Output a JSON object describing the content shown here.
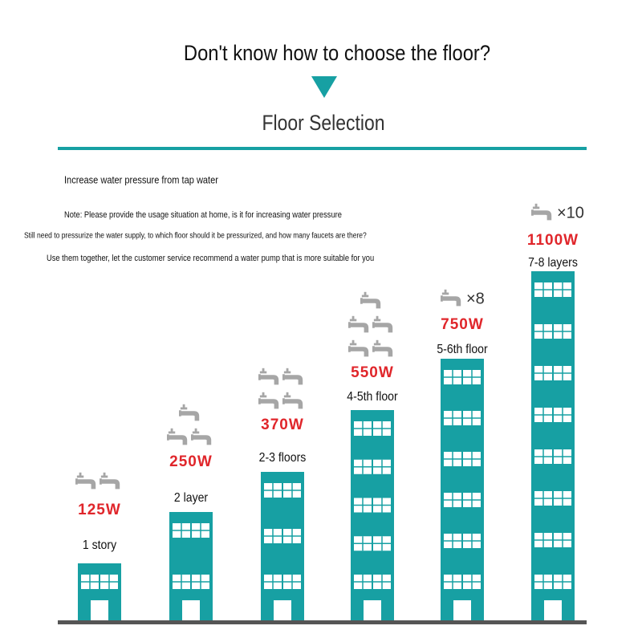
{
  "header": {
    "title": "Don't know how to choose the floor?",
    "subtitle": "Floor Selection"
  },
  "intro": [
    "Increase water pressure from tap water",
    "Note: Please provide the usage situation at home, is it for increasing water pressure",
    "Still need to pressurize the water supply, to which floor should it be pressurized, and how many faucets are there?",
    "Use them together, let the customer service recommend a water pump that is more suitable for you"
  ],
  "buildings": [
    {
      "power": "125W",
      "floor": "1 story"
    },
    {
      "power": "250W",
      "floor": "2 layer"
    },
    {
      "power": "370W",
      "floor": "2-3 floors"
    },
    {
      "power": "550W",
      "floor": "4-5th floor"
    },
    {
      "power": "750W",
      "floor": "5-6th floor",
      "faucets": "×8"
    },
    {
      "power": "1100W",
      "floor": "7-8 layers",
      "faucets": "×10"
    }
  ]
}
